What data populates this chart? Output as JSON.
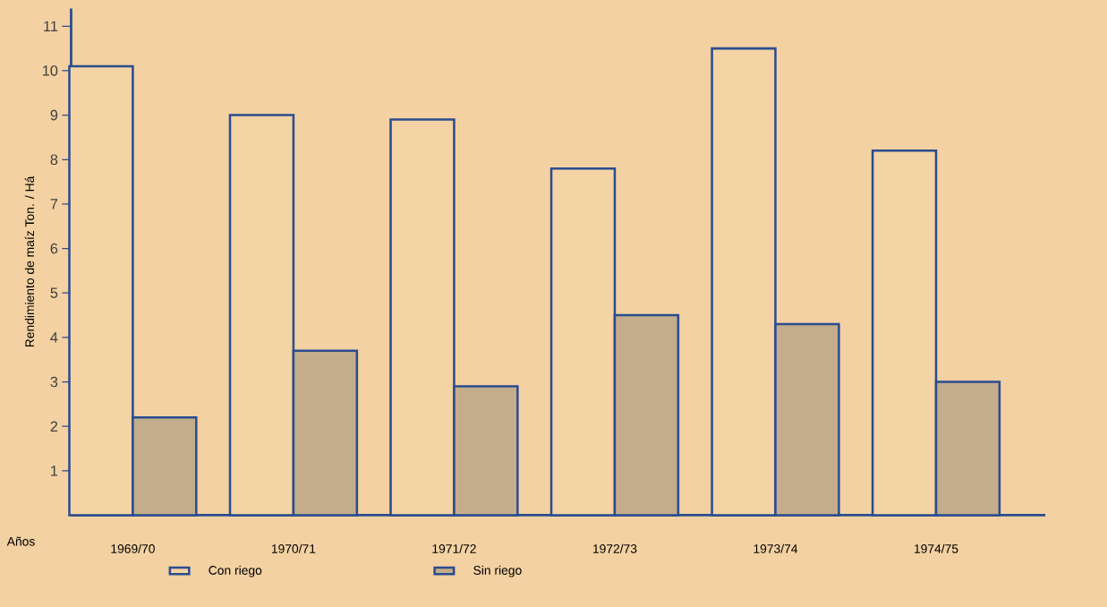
{
  "chart_data": {
    "type": "bar",
    "xlabel": "Años",
    "ylabel": "Rendimiento de maíz  Ton. / Há",
    "categories": [
      "1969/70",
      "1970/71",
      "1971/72",
      "1972/73",
      "1973/74",
      "1974/75"
    ],
    "series": [
      {
        "name": "Con riego",
        "color": "#f4d3a4",
        "values": [
          10.1,
          9.0,
          8.9,
          7.8,
          10.5,
          8.2
        ]
      },
      {
        "name": "Sin riego",
        "color": "#c4ad8a",
        "values": [
          2.2,
          3.7,
          2.9,
          4.5,
          4.3,
          3.0
        ]
      }
    ],
    "ylim": [
      0,
      11.4
    ],
    "yticks": [
      1,
      2,
      3,
      4,
      5,
      6,
      7,
      8,
      9,
      10,
      11
    ],
    "legend": "bottom",
    "grid": false
  }
}
